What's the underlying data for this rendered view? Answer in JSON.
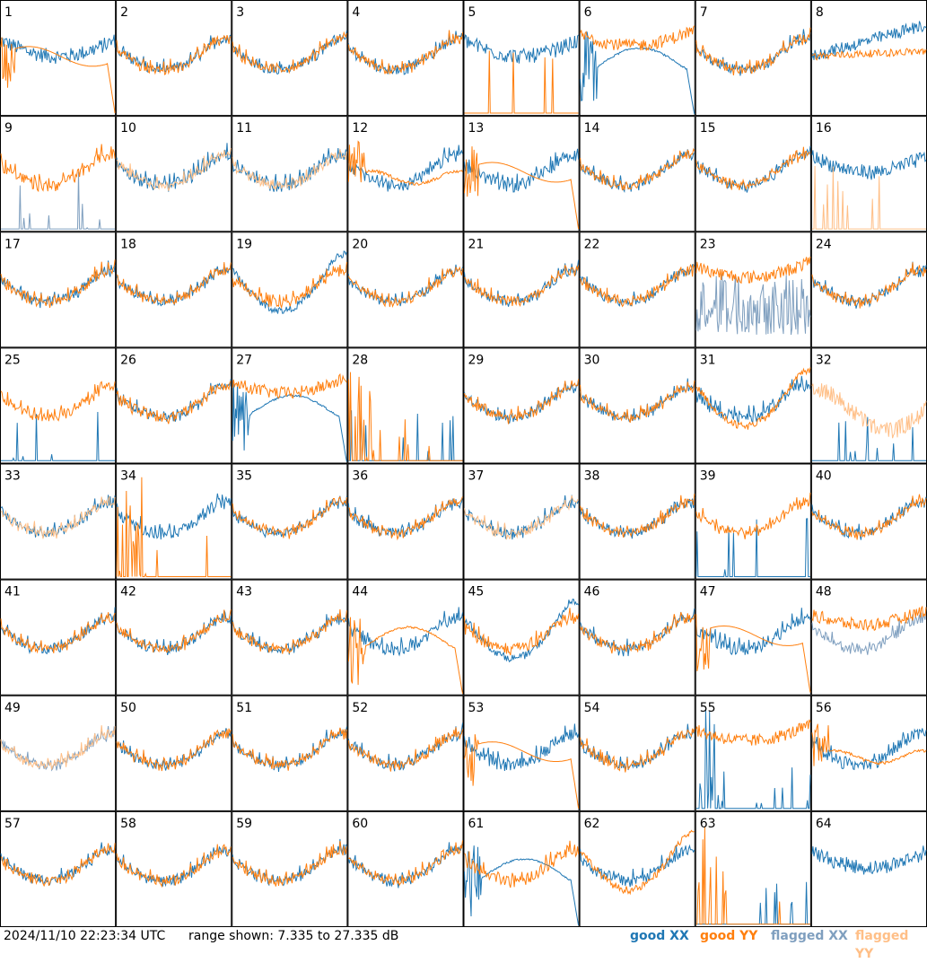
{
  "chart_data": {
    "type": "line",
    "panels": [
      "1",
      "2",
      "3",
      "4",
      "5",
      "6",
      "7",
      "8",
      "9",
      "10",
      "11",
      "12",
      "13",
      "14",
      "15",
      "16",
      "17",
      "18",
      "19",
      "20",
      "21",
      "22",
      "23",
      "24",
      "25",
      "26",
      "27",
      "28",
      "29",
      "30",
      "31",
      "32",
      "33",
      "34",
      "35",
      "36",
      "37",
      "38",
      "39",
      "40",
      "41",
      "42",
      "43",
      "44",
      "45",
      "46",
      "47",
      "48",
      "49",
      "50",
      "51",
      "52",
      "53",
      "54",
      "55",
      "56",
      "57",
      "58",
      "59",
      "60",
      "61",
      "62",
      "63",
      "64"
    ],
    "grid": {
      "rows": 8,
      "cols": 8
    },
    "ylim": [
      7.335,
      27.335
    ],
    "yunit": "dB",
    "series": [
      {
        "name": "good XX",
        "color": "#1f77b4"
      },
      {
        "name": "good YY",
        "color": "#ff7f0e"
      },
      {
        "name": "flagged XX",
        "color": "#7f9fbf"
      },
      {
        "name": "flagged YY",
        "color": "#ffbf87"
      }
    ],
    "panel_styles": {
      "1": {
        "xx": "noisy_mid",
        "yy": "decay_drop"
      },
      "5": {
        "xx": "noisy_mid",
        "yy": "spikes_low"
      },
      "6": {
        "xx": "decay_hump_drop",
        "yy": "noisy_high"
      },
      "8": {
        "xx": "noisy_rise",
        "yy": "noisy_flat"
      },
      "9": {
        "xx": "spikes_low_flagged",
        "yy": "noisy"
      },
      "10": {
        "xx": "noisy",
        "yy": "bathtub_flagged"
      },
      "11": {
        "xx": "noisy",
        "yy": "bathtub_flagged"
      },
      "12": {
        "xx": "noisy",
        "yy": "decay_flat"
      },
      "13": {
        "xx": "noisy",
        "yy": "decay_drop"
      },
      "16": {
        "xx": "noisy_mid",
        "yy": "spikes_low_flagged"
      },
      "19": {
        "xx": "deep_bathtub",
        "yy": "bathtub"
      },
      "23": {
        "xx": "spikes_mid_flagged",
        "yy": "noisy_high"
      },
      "25": {
        "xx": "spikes_low",
        "yy": "bathtub"
      },
      "27": {
        "xx": "decay_hump_drop",
        "yy": "noisy_high"
      },
      "28": {
        "xx": "spikes_low",
        "yy": "spikes_tall"
      },
      "31": {
        "xx": "noisy",
        "yy": "deep_bathtub"
      },
      "32": {
        "xx": "spikes_low",
        "yy": "noisy_flagged_high"
      },
      "33": {
        "xx": "bathtub",
        "yy": "bathtub_flagged"
      },
      "34": {
        "xx": "noisy",
        "yy": "spikes_tall"
      },
      "37": {
        "xx": "bathtub",
        "yy": "bathtub_flagged"
      },
      "39": {
        "xx": "spikes_low",
        "yy": "bathtub"
      },
      "44": {
        "xx": "noisy",
        "yy": "decay_hump_drop"
      },
      "45": {
        "xx": "deep_bathtub",
        "yy": "noisy"
      },
      "47": {
        "xx": "noisy",
        "yy": "decay_drop"
      },
      "48": {
        "xx": "bathtub_flagged",
        "yy": "noisy_high"
      },
      "49": {
        "xx": "bathtub_flagged",
        "yy": "bathtub_flagged"
      },
      "53": {
        "xx": "noisy",
        "yy": "decay_drop"
      },
      "55": {
        "xx": "spikes_tall",
        "yy": "noisy_high"
      },
      "56": {
        "xx": "noisy",
        "yy": "decay_flat"
      },
      "61": {
        "xx": "decay_hump_drop",
        "yy": "noisy"
      },
      "62": {
        "xx": "noisy",
        "yy": "deep_bathtub"
      },
      "63": {
        "xx": "spikes_low",
        "yy": "spikes_tall"
      },
      "64": {
        "xx": "noisy_mid",
        "yy": "none"
      }
    }
  },
  "footer": {
    "timestamp": "2024/11/10 22:23:34 UTC",
    "range_text": "range shown: 7.335 to 27.335 dB",
    "legend": [
      {
        "label": "good XX",
        "color": "#1f77b4"
      },
      {
        "label": "good YY",
        "color": "#ff7f0e"
      },
      {
        "label": "flagged XX",
        "color": "#7f9fbf"
      },
      {
        "label": "flagged YY",
        "color": "#ffbf87"
      }
    ]
  }
}
